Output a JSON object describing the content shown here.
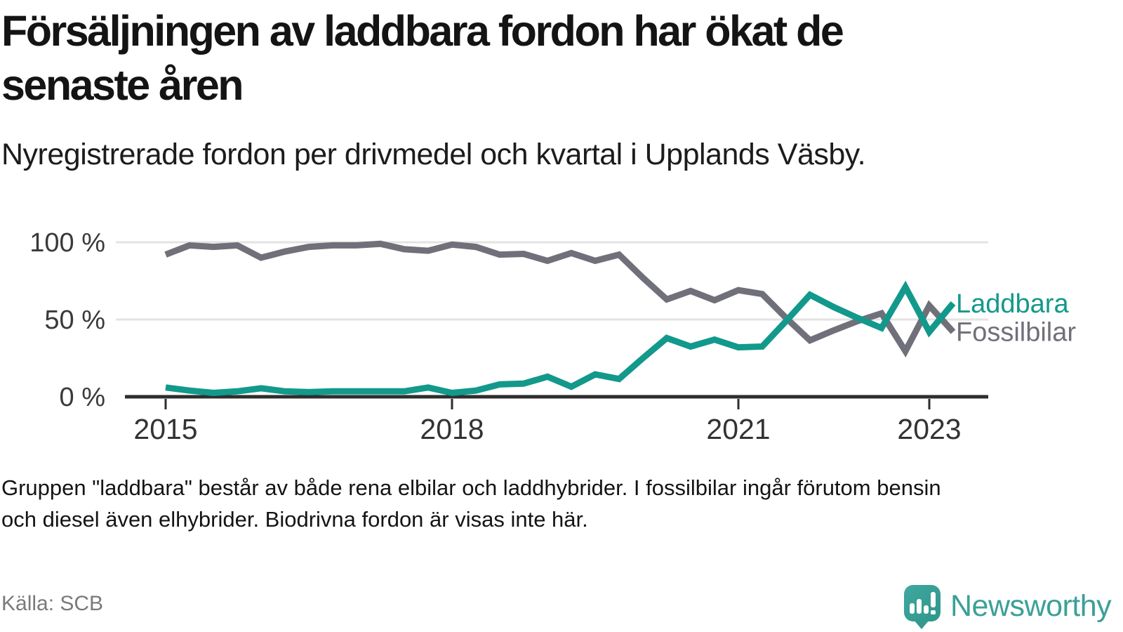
{
  "title": {
    "line1": "Försäljningen av laddbara fordon har ökat de",
    "line2": "senaste åren"
  },
  "subtitle": "Nyregistrerade fordon per drivmedel och kvartal i Upplands Väsby.",
  "footnote": {
    "line1": "Gruppen \"laddbara\" består av både rena elbilar och laddhybrider. I fossilbilar ingår förutom bensin",
    "line2": "och diesel även elhybrider. Biodrivna fordon är visas inte här."
  },
  "source": "Källa: SCB",
  "brand": {
    "name": "Newsworthy",
    "logo_icon": "speech-bubble-bar-chart-exclamation-icon"
  },
  "colors": {
    "laddbara": "#12998B",
    "fossilbilar": "#70707A",
    "grid": "#E3E3E3",
    "axis": "#2E2E2E",
    "tick_label": "#333333",
    "y_label": "#3A3A3A",
    "text": "#141414",
    "muted": "#7A7A7A",
    "brand": "#3BA097"
  },
  "chart_data": {
    "type": "line",
    "x_unit": "quarter",
    "x_start": "2015 Q1",
    "x_end": "2023 Q2",
    "points_count": 34,
    "ylim": [
      0,
      100
    ],
    "grid": "horizontal-only",
    "legend_position": "right-of-line-ends",
    "y_ticks": [
      {
        "label": "100 %",
        "value": 100
      },
      {
        "label": "50 %",
        "value": 50
      },
      {
        "label": "0 %",
        "value": 0
      }
    ],
    "x_ticks": [
      {
        "label": "2015",
        "quarter_index": 0
      },
      {
        "label": "2018",
        "quarter_index": 12
      },
      {
        "label": "2021",
        "quarter_index": 24
      },
      {
        "label": "2023",
        "quarter_index": 32
      }
    ],
    "series": [
      {
        "name": "Fossilbilar",
        "color": "#70707A",
        "values": [
          92,
          98,
          97,
          98,
          90,
          94,
          97,
          98,
          98,
          99,
          95.5,
          94.5,
          98.5,
          97,
          92,
          92.5,
          88,
          93,
          88,
          92,
          77,
          63,
          68.5,
          62.5,
          69,
          66.5,
          51,
          36.5,
          43,
          49,
          54,
          29.5,
          59,
          42
        ]
      },
      {
        "name": "Laddbara",
        "color": "#12998B",
        "values": [
          6,
          4,
          2.5,
          3.5,
          5.5,
          3.5,
          3,
          3.5,
          3.5,
          3.5,
          3.5,
          6,
          2.5,
          4,
          8,
          8.5,
          13,
          6.5,
          14.5,
          11.5,
          25,
          38,
          32.5,
          37,
          32,
          32.5,
          49,
          66,
          58,
          51,
          44.5,
          71,
          42,
          60.5
        ]
      }
    ]
  }
}
